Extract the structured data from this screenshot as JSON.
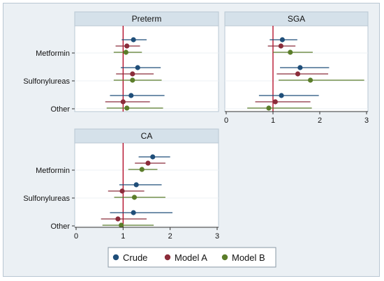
{
  "chart_data": [
    {
      "type": "scatter",
      "title": "Preterm",
      "categories": [
        "Metformin",
        "Sulfonylureas",
        "Other"
      ],
      "reference_line": 1,
      "xlim": [
        0,
        3
      ],
      "xticks": [],
      "series": [
        {
          "name": "Crude",
          "color": "#1f4e79",
          "estimates": [
            1.22,
            1.31,
            1.17
          ],
          "lower": [
            0.97,
            0.95,
            0.72
          ],
          "upper": [
            1.5,
            1.8,
            1.88
          ]
        },
        {
          "name": "Model A",
          "color": "#8b2c3a",
          "estimates": [
            1.08,
            1.2,
            1.0
          ],
          "lower": [
            0.84,
            0.85,
            0.62
          ],
          "upper": [
            1.36,
            1.65,
            1.57
          ]
        },
        {
          "name": "Model B",
          "color": "#5b7d2a",
          "estimates": [
            1.06,
            1.2,
            1.08
          ],
          "lower": [
            0.8,
            0.8,
            0.65
          ],
          "upper": [
            1.4,
            1.82,
            1.85
          ]
        }
      ]
    },
    {
      "type": "scatter",
      "title": "SGA",
      "categories": [
        "Metformin",
        "Sulfonylureas",
        "Other"
      ],
      "reference_line": 1,
      "xlim": [
        0,
        3
      ],
      "xticks": [
        "0",
        "1",
        "2",
        "3"
      ],
      "series": [
        {
          "name": "Crude",
          "color": "#1f4e79",
          "estimates": [
            1.2,
            1.58,
            1.18
          ],
          "lower": [
            0.93,
            1.15,
            0.7
          ],
          "upper": [
            1.52,
            2.2,
            1.98
          ]
        },
        {
          "name": "Model A",
          "color": "#8b2c3a",
          "estimates": [
            1.17,
            1.53,
            1.05
          ],
          "lower": [
            0.89,
            1.08,
            0.62
          ],
          "upper": [
            1.48,
            2.18,
            1.8
          ]
        },
        {
          "name": "Model B",
          "color": "#5b7d2a",
          "estimates": [
            1.37,
            1.8,
            0.91
          ],
          "lower": [
            1.0,
            1.12,
            0.45
          ],
          "upper": [
            1.85,
            2.95,
            1.83
          ]
        }
      ]
    },
    {
      "type": "scatter",
      "title": "CA",
      "categories": [
        "Metformin",
        "Sulfonylureas",
        "Other"
      ],
      "reference_line": 1,
      "xlim": [
        0,
        3
      ],
      "xticks": [
        "0",
        "1",
        "2",
        "3"
      ],
      "series": [
        {
          "name": "Crude",
          "color": "#1f4e79",
          "estimates": [
            1.63,
            1.28,
            1.22
          ],
          "lower": [
            1.33,
            0.92,
            0.72
          ],
          "upper": [
            2.0,
            1.82,
            2.05
          ]
        },
        {
          "name": "Model A",
          "color": "#8b2c3a",
          "estimates": [
            1.53,
            0.98,
            0.89
          ],
          "lower": [
            1.25,
            0.68,
            0.53
          ],
          "upper": [
            1.9,
            1.45,
            1.5
          ]
        },
        {
          "name": "Model B",
          "color": "#5b7d2a",
          "estimates": [
            1.4,
            1.24,
            0.96
          ],
          "lower": [
            1.11,
            0.81,
            0.56
          ],
          "upper": [
            1.73,
            1.9,
            1.65
          ]
        }
      ]
    }
  ],
  "legend": {
    "items": [
      {
        "label": "Crude",
        "color": "#1f4e79"
      },
      {
        "label": "Model A",
        "color": "#8b2c3a"
      },
      {
        "label": "Model B",
        "color": "#5b7d2a"
      }
    ]
  }
}
